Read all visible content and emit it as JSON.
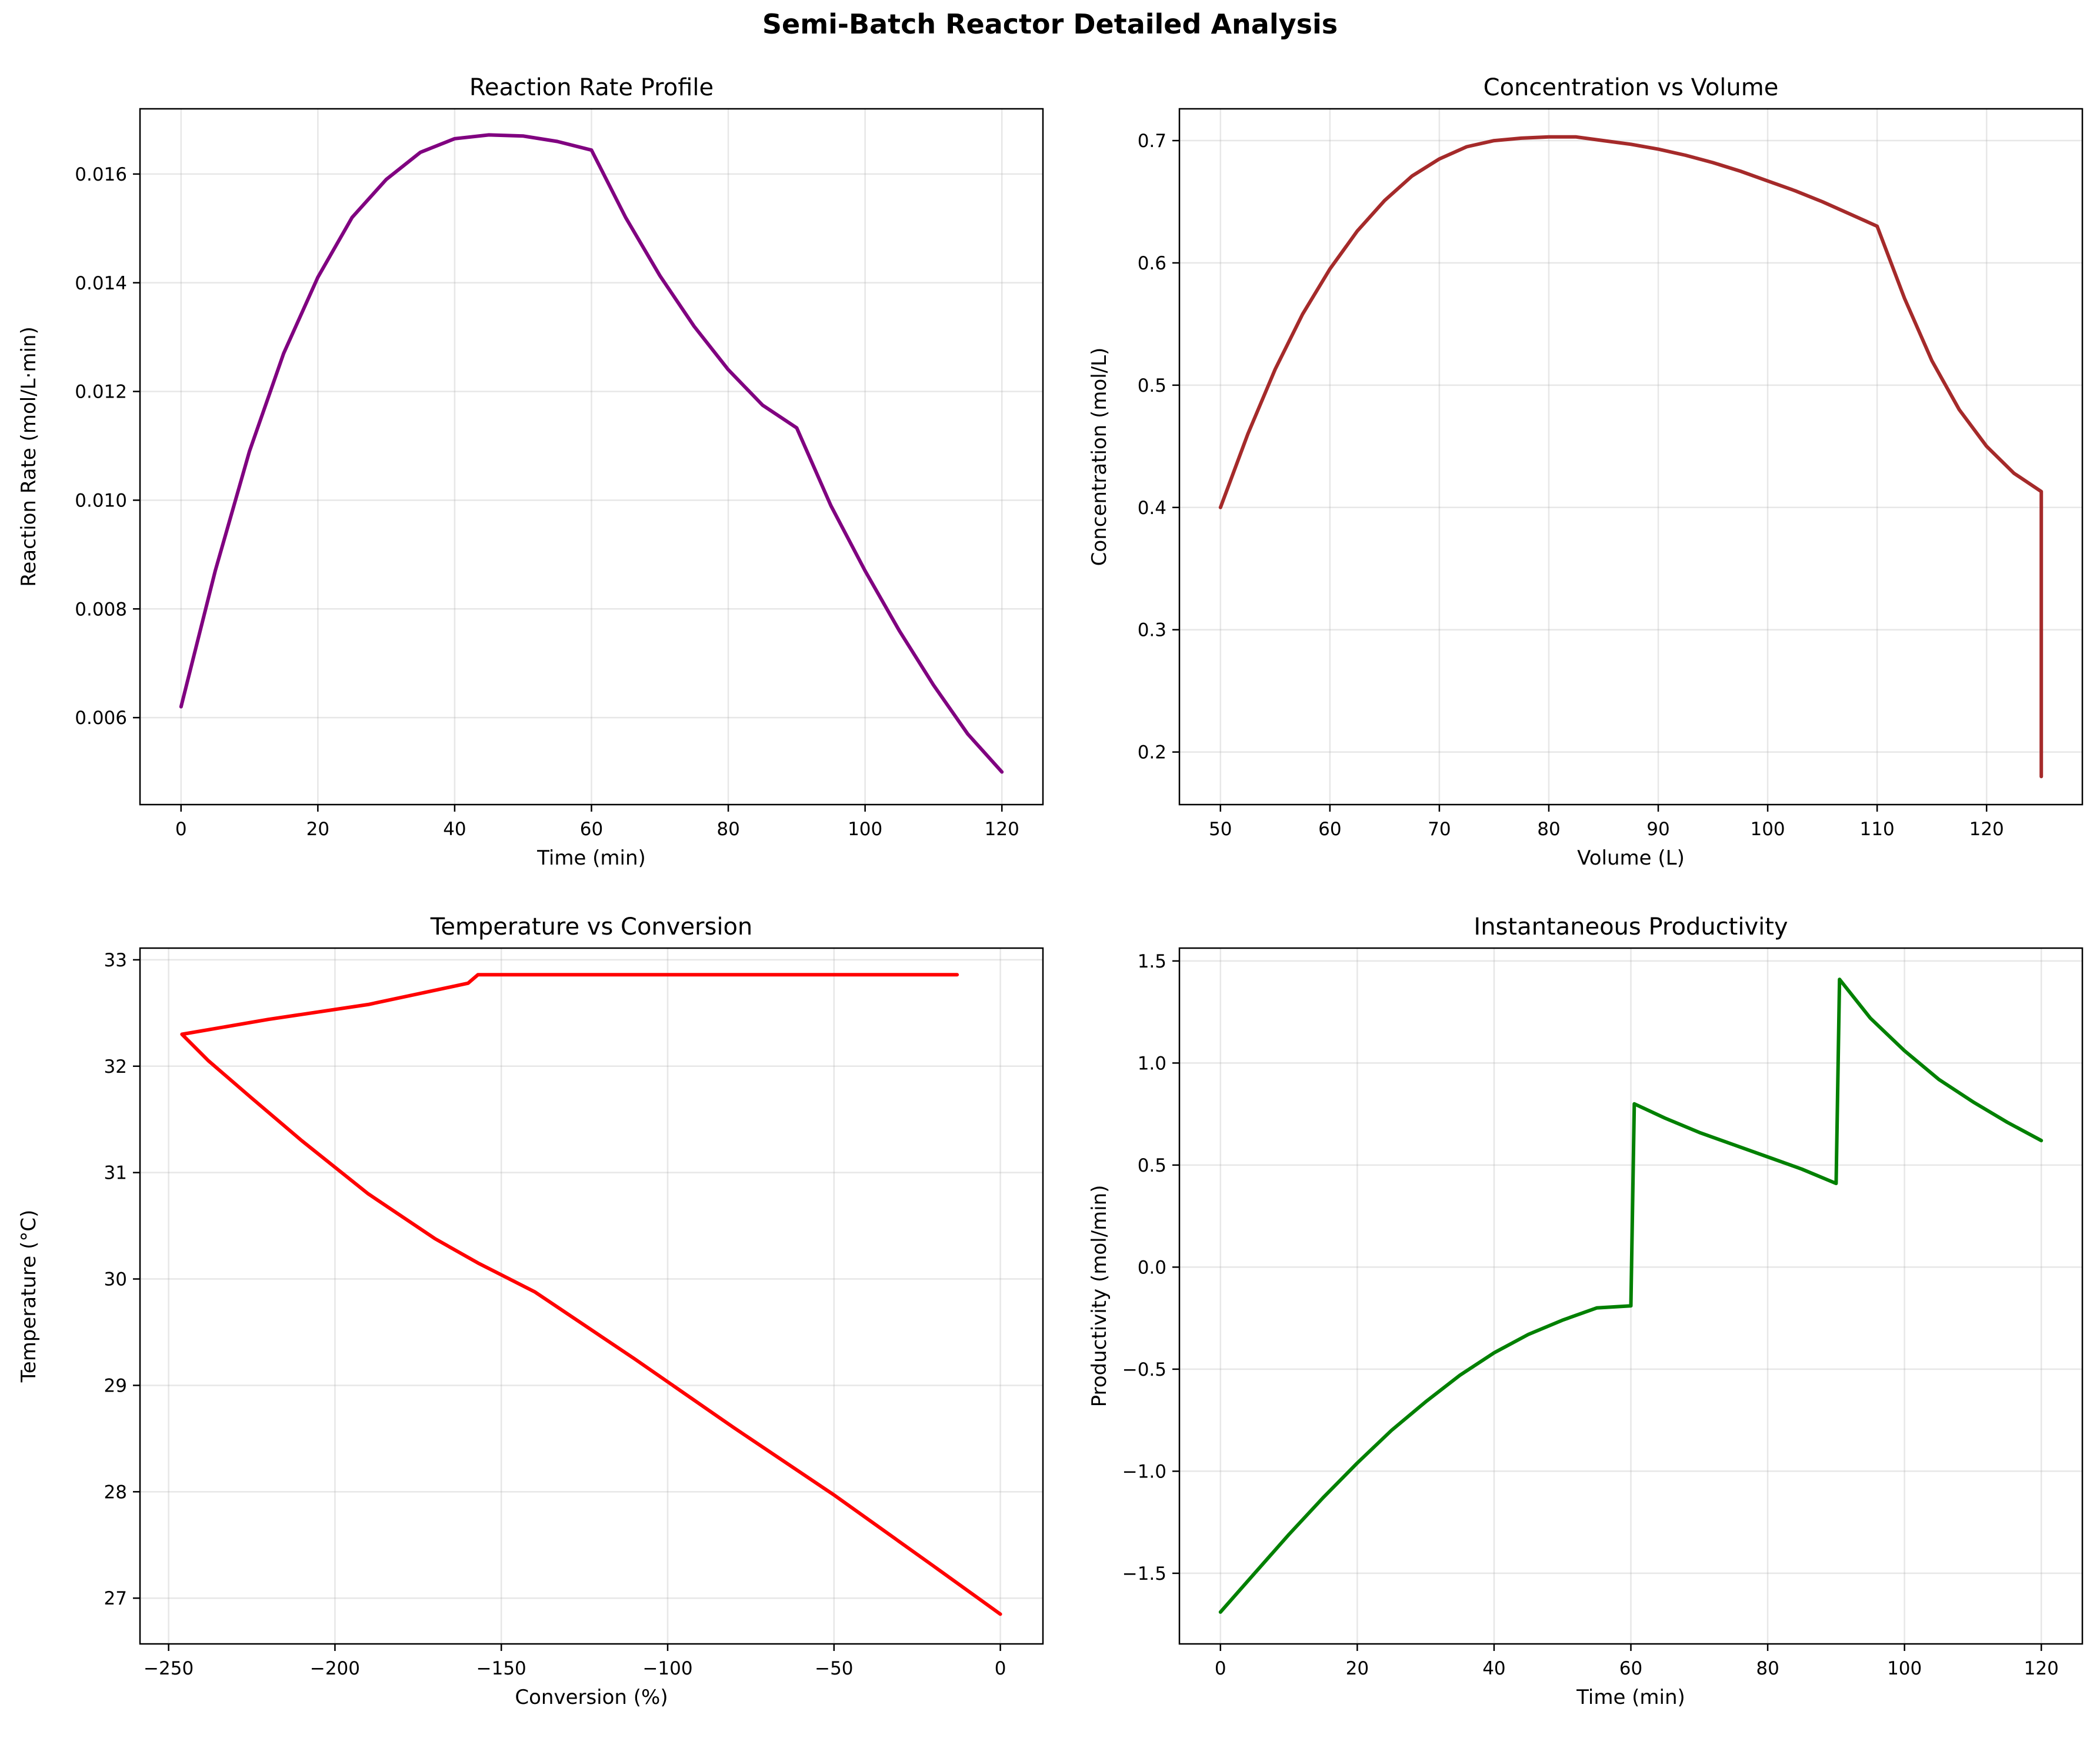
{
  "suptitle": "Semi-Batch Reactor Detailed Analysis",
  "chart_data": [
    {
      "type": "line",
      "title": "Reaction Rate Profile",
      "xlabel": "Time (min)",
      "ylabel": "Reaction Rate (mol/L·min)",
      "xlim": [
        -6,
        126
      ],
      "ylim": [
        0.0044,
        0.0172
      ],
      "xticks": [
        0,
        20,
        40,
        60,
        80,
        100,
        120
      ],
      "yticks": [
        0.006,
        0.008,
        0.01,
        0.012,
        0.014,
        0.016
      ],
      "ytick_labels": [
        "0.006",
        "0.008",
        "0.010",
        "0.012",
        "0.014",
        "0.016"
      ],
      "grid": true,
      "color": "#800080",
      "x": [
        0,
        5,
        10,
        15,
        20,
        25,
        30,
        35,
        40,
        45,
        50,
        55,
        60,
        65,
        70,
        75,
        80,
        85,
        90,
        95,
        100,
        105,
        110,
        115,
        120
      ],
      "y": [
        0.0062,
        0.0087,
        0.0109,
        0.0127,
        0.0141,
        0.0152,
        0.0159,
        0.0164,
        0.01665,
        0.01672,
        0.0167,
        0.0166,
        0.01644,
        0.0152,
        0.01413,
        0.0132,
        0.0124,
        0.01175,
        0.01133,
        0.0099,
        0.0087,
        0.0076,
        0.0066,
        0.0057,
        0.005
      ]
    },
    {
      "type": "line",
      "title": "Concentration vs Volume",
      "xlabel": "Volume (L)",
      "ylabel": "Concentration (mol/L)",
      "xlim": [
        46.25,
        128.75
      ],
      "ylim": [
        0.157,
        0.726
      ],
      "xticks": [
        50,
        60,
        70,
        80,
        90,
        100,
        110,
        120
      ],
      "yticks": [
        0.2,
        0.3,
        0.4,
        0.5,
        0.6,
        0.7
      ],
      "ytick_labels": [
        "0.2",
        "0.3",
        "0.4",
        "0.5",
        "0.6",
        "0.7"
      ],
      "grid": true,
      "color": "#a52a2a",
      "x": [
        50,
        52.5,
        55,
        57.5,
        60,
        62.5,
        65,
        67.5,
        70,
        72.5,
        75,
        77.5,
        80,
        82.5,
        85,
        87.5,
        90,
        92.5,
        95,
        97.5,
        100,
        102.5,
        105,
        107.5,
        110,
        112.5,
        115,
        117.5,
        120,
        122.5,
        125,
        125
      ],
      "y": [
        0.4,
        0.46,
        0.513,
        0.558,
        0.595,
        0.626,
        0.651,
        0.671,
        0.685,
        0.695,
        0.7,
        0.702,
        0.703,
        0.703,
        0.7,
        0.697,
        0.693,
        0.688,
        0.682,
        0.675,
        0.667,
        0.659,
        0.65,
        0.64,
        0.63,
        0.571,
        0.52,
        0.48,
        0.45,
        0.428,
        0.413,
        0.18
      ]
    },
    {
      "type": "line",
      "title": "Temperature vs Conversion",
      "xlabel": "Conversion (%)",
      "ylabel": "Temperature (°C)",
      "xlim": [
        -258.6,
        12.8
      ],
      "ylim": [
        26.57,
        33.11
      ],
      "xticks": [
        -250,
        -200,
        -150,
        -100,
        -50,
        0
      ],
      "xtick_labels": [
        "−250",
        "−200",
        "−150",
        "−100",
        "−50",
        "0"
      ],
      "yticks": [
        27,
        28,
        29,
        30,
        31,
        32,
        33
      ],
      "ytick_labels": [
        "27",
        "28",
        "29",
        "30",
        "31",
        "32",
        "33"
      ],
      "grid": true,
      "color": "#ff0000",
      "x": [
        0,
        -20,
        -50,
        -80,
        -110,
        -140,
        -157,
        -170,
        -190,
        -210,
        -225,
        -238,
        -246,
        -220,
        -190,
        -160,
        -157,
        -130,
        -100,
        -70,
        -40,
        -13
      ],
      "y": [
        26.85,
        27.3,
        27.97,
        28.6,
        29.25,
        29.88,
        30.15,
        30.38,
        30.8,
        31.3,
        31.7,
        32.05,
        32.3,
        32.44,
        32.58,
        32.78,
        32.86,
        32.86,
        32.86,
        32.86,
        32.86,
        32.86
      ]
    },
    {
      "type": "line",
      "title": "Instantaneous Productivity",
      "xlabel": "Time (min)",
      "ylabel": "Productivity (mol/min)",
      "xlim": [
        -6,
        126
      ],
      "ylim": [
        -1.846,
        1.563
      ],
      "xticks": [
        0,
        20,
        40,
        60,
        80,
        100,
        120
      ],
      "yticks": [
        -1.5,
        -1.0,
        -0.5,
        0.0,
        0.5,
        1.0,
        1.5
      ],
      "ytick_labels": [
        "−1.5",
        "−1.0",
        "−0.5",
        "0.0",
        "0.5",
        "1.0",
        "1.5"
      ],
      "grid": true,
      "color": "#008000",
      "x": [
        0,
        5,
        10,
        15,
        20,
        25,
        30,
        35,
        40,
        45,
        50,
        55,
        60,
        60.5,
        65,
        70,
        75,
        80,
        85,
        90,
        90.5,
        95,
        100,
        105,
        110,
        115,
        120
      ],
      "y": [
        -1.69,
        -1.5,
        -1.31,
        -1.13,
        -0.96,
        -0.8,
        -0.66,
        -0.53,
        -0.42,
        -0.33,
        -0.26,
        -0.2,
        -0.19,
        0.8,
        0.73,
        0.66,
        0.6,
        0.54,
        0.48,
        0.41,
        1.41,
        1.22,
        1.06,
        0.92,
        0.81,
        0.71,
        0.62
      ]
    }
  ]
}
